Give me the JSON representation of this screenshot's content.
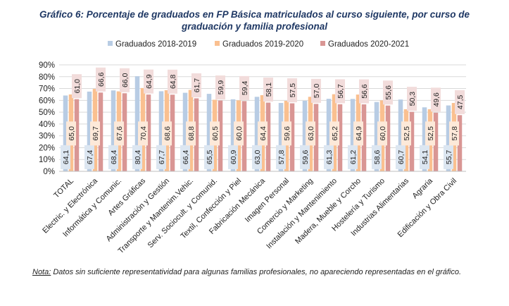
{
  "chart_data": {
    "type": "bar",
    "title": "Gráfico 6: Porcentaje de graduados en FP Básica matriculados al curso siguiente, por curso de graduación y familia profesional",
    "categories": [
      "TOTAL",
      "Electric. y Electrónica",
      "Informática y Comunic.",
      "Artes Gráficas",
      "Administración y Gestión",
      "Transporte y Mantenim.Vehic.",
      "Serv. Sociocult. y Comunid.",
      "Textil, Confección y Piel",
      "Fabricación Mecánica",
      "Imagen Personal",
      "Comercio y Marketing",
      "Instalación y Mantenimiento",
      "Madera, Mueble y Corcho",
      "Hostelería y Turismo",
      "Industrias Alimentarias",
      "Agraria",
      "Edificación y Obra Civil"
    ],
    "series": [
      {
        "name": "Graduados 2018-2019",
        "color": "#b8cce4",
        "values": [
          64.1,
          67.4,
          68.4,
          80.4,
          67.7,
          66.4,
          65.5,
          60.9,
          63.0,
          57.8,
          59.6,
          61.3,
          61.2,
          58.6,
          60.7,
          54.1,
          55.7
        ]
      },
      {
        "name": "Graduados 2019-2020",
        "color": "#fac090",
        "values": [
          65.0,
          69.7,
          67.6,
          70.4,
          68.6,
          68.8,
          60.5,
          60.0,
          64.4,
          59.6,
          63.0,
          65.2,
          64.9,
          60.0,
          52.5,
          52.5,
          57.8
        ]
      },
      {
        "name": "Graduados 2020-2021",
        "color": "#d99694",
        "values": [
          61.0,
          66.6,
          66.0,
          64.9,
          64.8,
          61.7,
          59.9,
          59.4,
          58.1,
          57.5,
          57.0,
          56.7,
          56.6,
          55.6,
          50.3,
          49.6,
          47.5
        ]
      }
    ],
    "yticks": [
      "0%",
      "10%",
      "20%",
      "30%",
      "40%",
      "50%",
      "60%",
      "70%",
      "80%",
      "90%"
    ],
    "ylim": [
      0,
      90
    ],
    "grid": true,
    "legend": "top"
  },
  "note_label": "Nota:",
  "note_text": " Datos sin suficiente representatividad para algunas familias profesionales, no apareciendo representadas en el gráfico."
}
